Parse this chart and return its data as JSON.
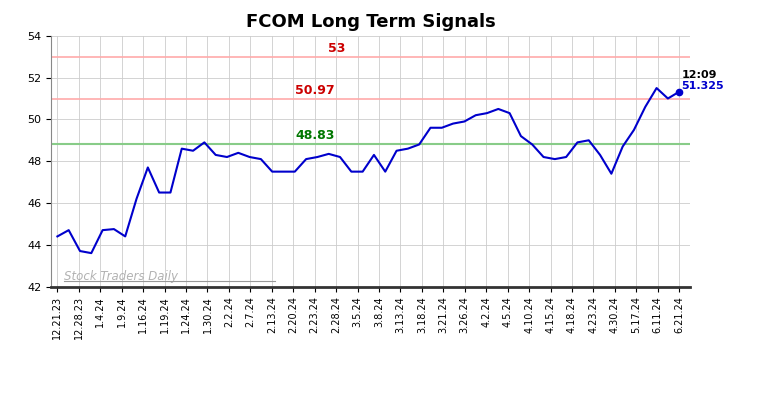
{
  "title": "FCOM Long Term Signals",
  "line_color": "#0000cc",
  "line_width": 1.5,
  "hline_red1": 53.0,
  "hline_red2": 50.97,
  "hline_green": 48.83,
  "hline_red_color": "#ffaaaa",
  "hline_green_color": "#88cc88",
  "hline_red_lw": 1.2,
  "hline_green_lw": 1.5,
  "label_53": "53",
  "label_5097": "50.97",
  "label_4883": "48.83",
  "label_red_color": "#cc0000",
  "label_green_color": "#007700",
  "label_fontsize": 9,
  "watermark": "Stock Traders Daily",
  "watermark_color": "#aaaaaa",
  "annotation_time": "12:09",
  "annotation_price": "51.325",
  "annotation_color_time": "#000000",
  "annotation_color_price": "#0000cc",
  "dot_color": "#0000cc",
  "ylim": [
    42,
    54
  ],
  "yticks": [
    42,
    44,
    46,
    48,
    50,
    52,
    54
  ],
  "x_labels": [
    "12.21.23",
    "12.28.23",
    "1.4.24",
    "1.9.24",
    "1.16.24",
    "1.19.24",
    "1.24.24",
    "1.30.24",
    "2.2.24",
    "2.7.24",
    "2.13.24",
    "2.20.24",
    "2.23.24",
    "2.28.24",
    "3.5.24",
    "3.8.24",
    "3.13.24",
    "3.18.24",
    "3.21.24",
    "3.26.24",
    "4.2.24",
    "4.5.24",
    "4.10.24",
    "4.15.24",
    "4.18.24",
    "4.23.24",
    "4.30.24",
    "5.17.24",
    "6.11.24",
    "6.21.24"
  ],
  "y_values": [
    44.4,
    44.7,
    43.7,
    43.6,
    44.7,
    44.75,
    44.4,
    46.2,
    47.7,
    46.5,
    46.5,
    48.6,
    48.5,
    48.9,
    48.3,
    48.2,
    48.4,
    48.2,
    48.1,
    47.5,
    47.5,
    47.5,
    48.1,
    48.2,
    48.35,
    48.2,
    47.5,
    47.5,
    48.3,
    47.5,
    48.5,
    48.6,
    48.8,
    49.6,
    49.6,
    49.8,
    49.9,
    50.2,
    50.3,
    50.5,
    50.3,
    49.2,
    48.8,
    48.2,
    48.1,
    48.2,
    48.9,
    49.0,
    48.3,
    47.4,
    48.7,
    49.5,
    50.6,
    51.5,
    51.0,
    51.325
  ],
  "background_color": "#ffffff",
  "grid_color": "#cccccc",
  "tick_fontsize": 7,
  "title_fontsize": 13
}
